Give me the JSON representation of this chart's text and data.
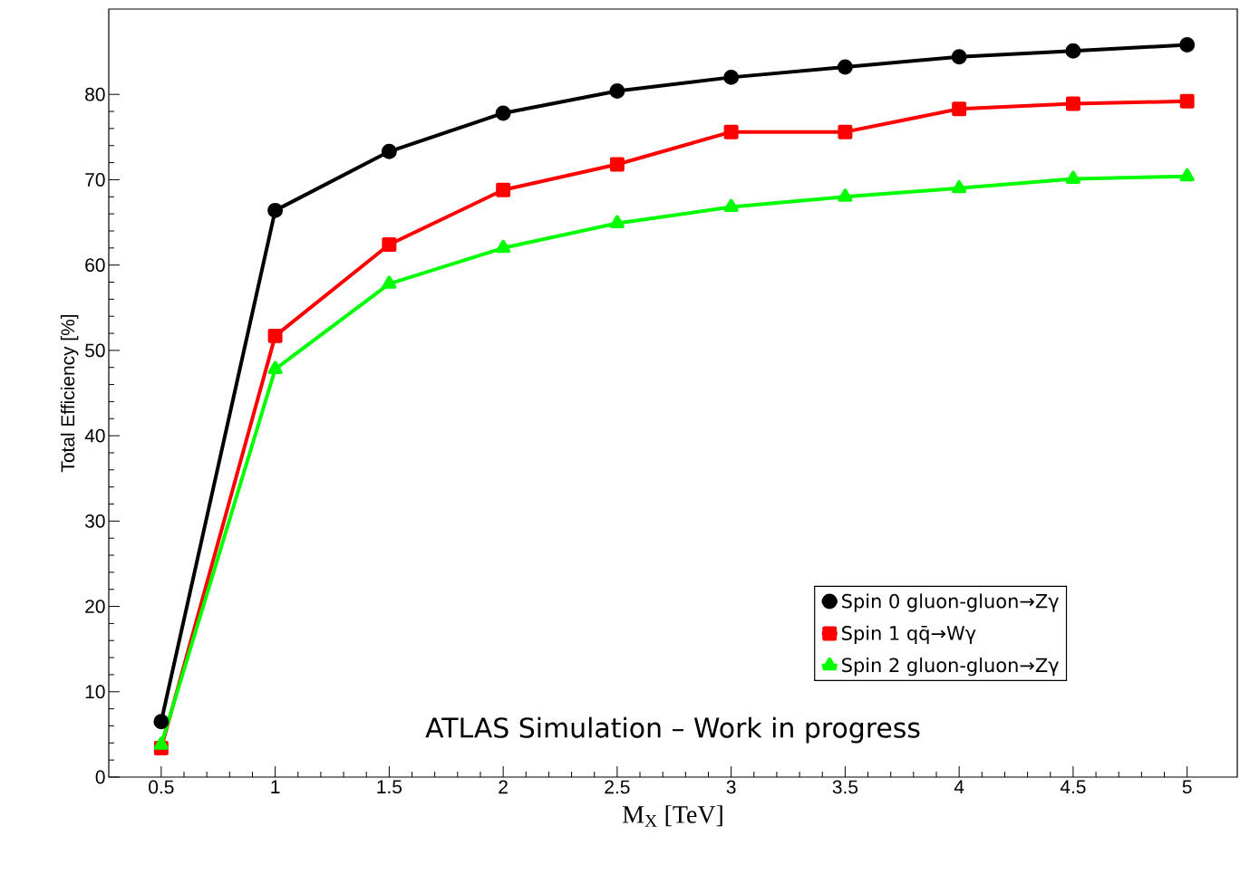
{
  "chart_data": {
    "type": "line",
    "xlabel": "M$_{X}$ [TeV]",
    "ylabel": "Total Efficiency [%]",
    "x": [
      0.5,
      1,
      1.5,
      2,
      2.5,
      3,
      3.5,
      4,
      4.5,
      5
    ],
    "series": [
      {
        "name": "Spin 0 gluon-gluon→Zγ",
        "color": "#000000",
        "marker": "circle",
        "values": [
          6.5,
          66.4,
          73.3,
          77.8,
          80.4,
          82.0,
          83.2,
          84.4,
          85.1,
          85.8
        ]
      },
      {
        "name": "Spin 1 qq̄→Wγ",
        "color": "#ff0000",
        "marker": "square",
        "values": [
          3.4,
          51.7,
          62.4,
          68.8,
          71.8,
          75.6,
          75.6,
          78.3,
          78.9,
          79.2
        ]
      },
      {
        "name": "Spin 2 gluon-gluon→Zγ",
        "color": "#00ff00",
        "marker": "triangle",
        "values": [
          3.8,
          47.8,
          57.8,
          62.0,
          64.9,
          66.8,
          68.0,
          69.0,
          70.1,
          70.4
        ]
      }
    ],
    "xlim": [
      0.27,
      5.22
    ],
    "ylim": [
      0,
      90
    ],
    "xticks": [
      0.5,
      1,
      1.5,
      2,
      2.5,
      3,
      3.5,
      4,
      4.5,
      5
    ],
    "yticks": [
      0,
      10,
      20,
      30,
      40,
      50,
      60,
      70,
      80
    ],
    "legend": "bottom right",
    "grid": false,
    "line_style": "solid",
    "annotations": [
      "ATLAS Simulation – Work in progress"
    ]
  }
}
